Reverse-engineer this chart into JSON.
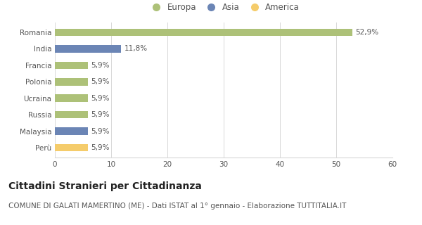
{
  "categories": [
    "Romania",
    "India",
    "Francia",
    "Polonia",
    "Ucraina",
    "Russia",
    "Malaysia",
    "Perù"
  ],
  "values": [
    52.9,
    11.8,
    5.9,
    5.9,
    5.9,
    5.9,
    5.9,
    5.9
  ],
  "labels": [
    "52,9%",
    "11,8%",
    "5,9%",
    "5,9%",
    "5,9%",
    "5,9%",
    "5,9%",
    "5,9%"
  ],
  "colors": [
    "#adc178",
    "#6b85b5",
    "#adc178",
    "#adc178",
    "#adc178",
    "#adc178",
    "#6b85b5",
    "#f5cc6b"
  ],
  "legend_labels": [
    "Europa",
    "Asia",
    "America"
  ],
  "legend_colors": [
    "#adc178",
    "#6b85b5",
    "#f5cc6b"
  ],
  "xlim": [
    0,
    60
  ],
  "xticks": [
    0,
    10,
    20,
    30,
    40,
    50,
    60
  ],
  "title_bold": "Cittadini Stranieri per Cittadinanza",
  "subtitle": "COMUNE DI GALATI MAMERTINO (ME) - Dati ISTAT al 1° gennaio - Elaborazione TUTTITALIA.IT",
  "bg_color": "#ffffff",
  "grid_color": "#d8d8d8",
  "bar_height": 0.45,
  "title_fontsize": 10,
  "subtitle_fontsize": 7.5,
  "label_fontsize": 7.5,
  "tick_fontsize": 7.5,
  "legend_fontsize": 8.5
}
